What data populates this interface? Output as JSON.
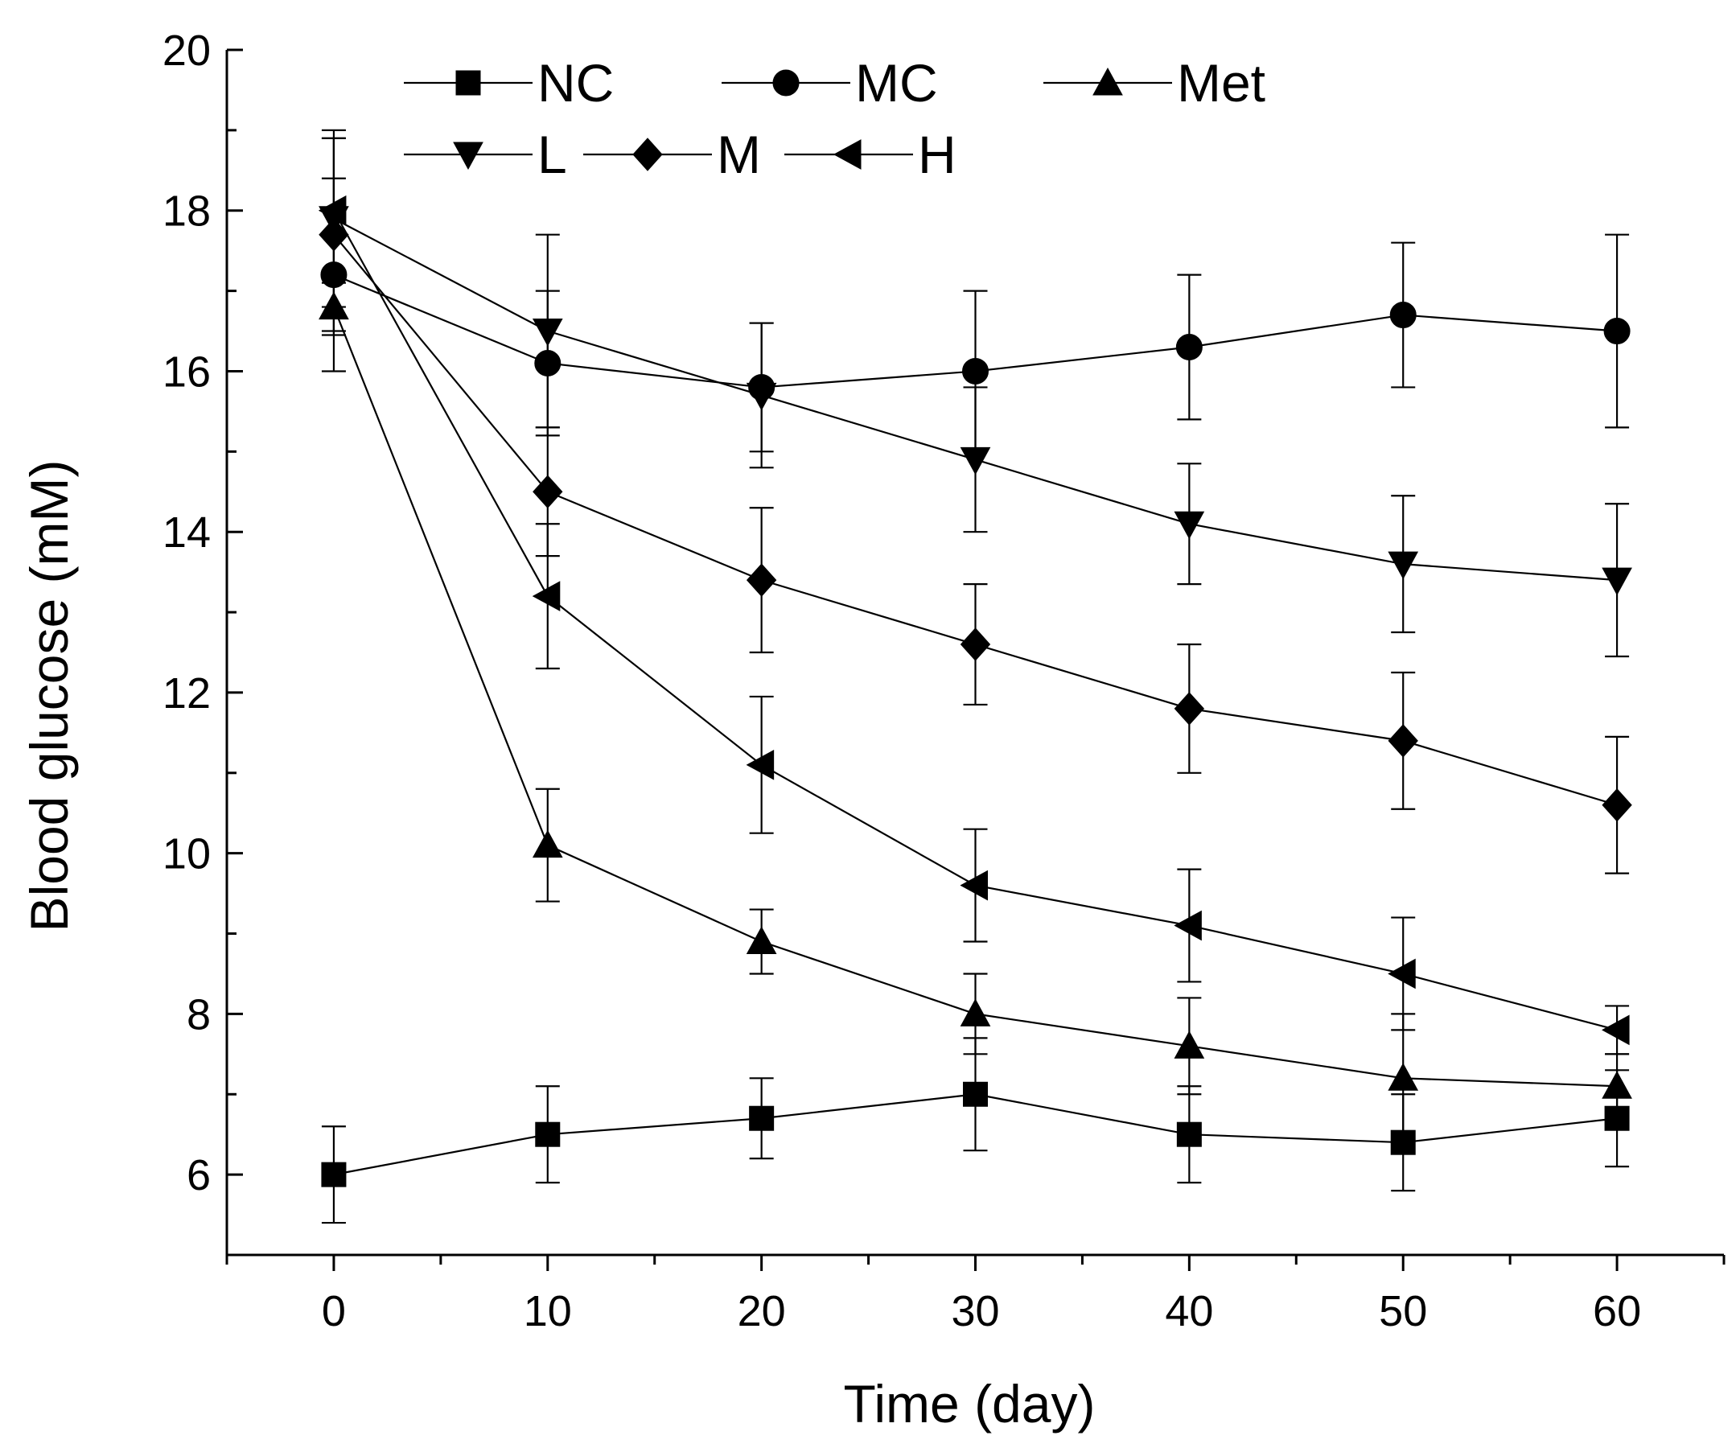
{
  "chart_data": {
    "type": "line",
    "title": "",
    "xlabel": "Time (day)",
    "ylabel": "Blood glucose (mM)",
    "x": [
      0,
      10,
      20,
      30,
      40,
      50,
      60
    ],
    "xlim": [
      -5,
      65
    ],
    "ylim": [
      5,
      20
    ],
    "x_ticks": [
      0,
      10,
      20,
      30,
      40,
      50,
      60
    ],
    "y_ticks": [
      6,
      8,
      10,
      12,
      14,
      16,
      18,
      20
    ],
    "legend_position": "top-left",
    "grid": false,
    "series": [
      {
        "name": "NC",
        "marker": "square",
        "values": [
          6.0,
          6.5,
          6.7,
          7.0,
          6.5,
          6.4,
          6.7
        ],
        "errors": [
          0.6,
          0.6,
          0.5,
          0.7,
          0.6,
          0.6,
          0.6
        ]
      },
      {
        "name": "MC",
        "marker": "circle",
        "values": [
          17.2,
          16.1,
          15.8,
          16.0,
          16.3,
          16.7,
          16.5
        ],
        "errors": [
          1.2,
          0.9,
          0.8,
          1.0,
          0.9,
          0.9,
          1.2
        ]
      },
      {
        "name": "Met",
        "marker": "triangle-up",
        "values": [
          16.8,
          10.1,
          8.9,
          8.0,
          7.6,
          7.2,
          7.1
        ],
        "errors": [
          0.35,
          0.7,
          0.4,
          0.5,
          0.6,
          0.8,
          0.4
        ]
      },
      {
        "name": "L",
        "marker": "triangle-down",
        "values": [
          17.9,
          16.5,
          15.7,
          14.9,
          14.1,
          13.6,
          13.4
        ],
        "errors": [
          1.1,
          1.2,
          0.9,
          0.9,
          0.75,
          0.85,
          0.95
        ]
      },
      {
        "name": "M",
        "marker": "diamond",
        "values": [
          17.7,
          14.5,
          13.4,
          12.6,
          11.8,
          11.4,
          10.6
        ],
        "errors": [
          1.2,
          0.8,
          0.9,
          0.75,
          0.8,
          0.85,
          0.85
        ]
      },
      {
        "name": "H",
        "marker": "triangle-left",
        "values": [
          18.0,
          13.2,
          11.1,
          9.6,
          9.1,
          8.5,
          7.8
        ],
        "errors": [
          0.9,
          0.9,
          0.85,
          0.7,
          0.7,
          0.7,
          0.3
        ]
      }
    ]
  }
}
